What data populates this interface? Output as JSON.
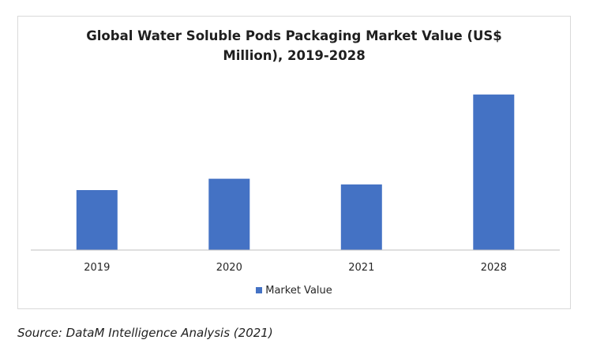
{
  "chart_data": {
    "type": "bar",
    "title_line1": "Global Water Soluble Pods Packaging Market Value (US$",
    "title_line2": "Million), 2019-2028",
    "categories": [
      "2019",
      "2020",
      "2021",
      "2028"
    ],
    "series": [
      {
        "name": "Market Value",
        "values": [
          74,
          88,
          81,
          192
        ],
        "color": "#4472c4"
      }
    ],
    "ylim": [
      0,
      220
    ],
    "grid": false,
    "legend_position": "bottom"
  },
  "footer": {
    "source": "Source: DataM Intelligence Analysis (2021)"
  }
}
